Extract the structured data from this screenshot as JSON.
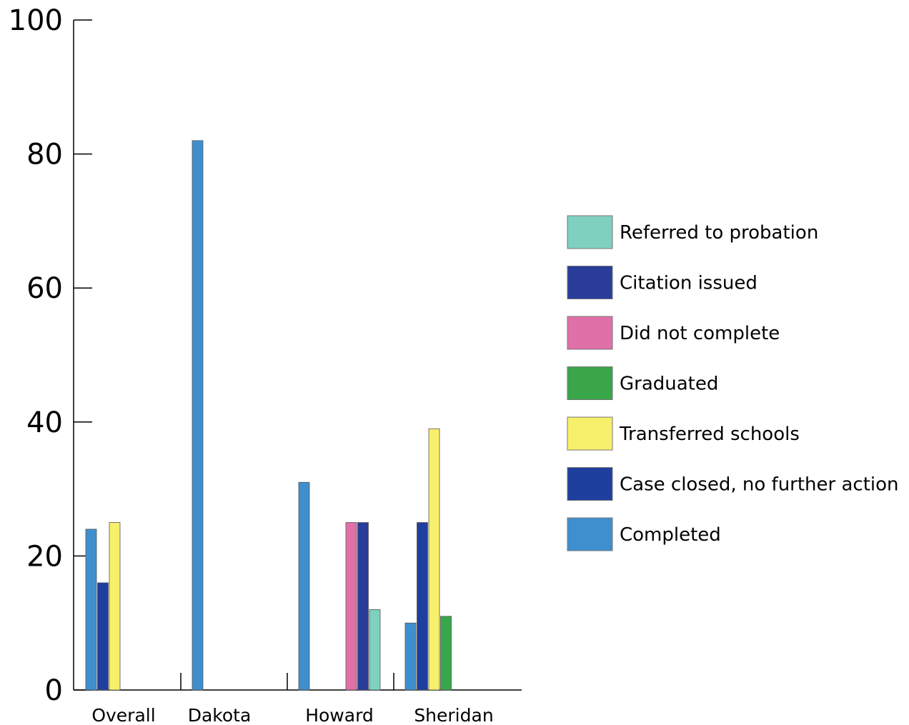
{
  "chart_data": {
    "type": "bar",
    "categories": [
      "Overall",
      "Dakota",
      "Howard",
      "Sheridan"
    ],
    "ylim": [
      0,
      100
    ],
    "yticks": [
      0,
      20,
      40,
      60,
      80,
      100
    ],
    "grid": false,
    "legend_position": "right",
    "series": [
      {
        "name": "Completed",
        "color": "#3f8fcf",
        "values": [
          24,
          82,
          31,
          10
        ]
      },
      {
        "name": "Case closed, no further action",
        "color": "#1f3f9f",
        "values": [
          16,
          null,
          null,
          25
        ]
      },
      {
        "name": "Transferred schools",
        "color": "#f7f06a",
        "values": [
          25,
          null,
          null,
          39
        ]
      },
      {
        "name": "Graduated",
        "color": "#3aa64a",
        "values": [
          null,
          null,
          null,
          11
        ]
      },
      {
        "name": "Did not complete",
        "color": "#e070a8",
        "values": [
          null,
          null,
          25,
          null
        ]
      },
      {
        "name": "Citation issued",
        "color": "#2a3c9a",
        "values": [
          null,
          null,
          25,
          null
        ]
      },
      {
        "name": "Referred to probation",
        "color": "#7fd0bf",
        "values": [
          null,
          null,
          12,
          null
        ]
      }
    ],
    "legend_order": [
      "Referred to probation",
      "Citation issued",
      "Did not complete",
      "Graduated",
      "Transferred schools",
      "Case closed, no further action",
      "Completed"
    ]
  }
}
